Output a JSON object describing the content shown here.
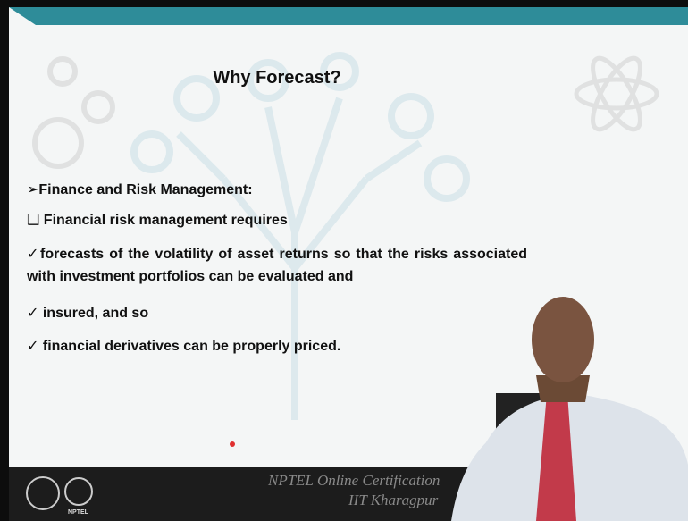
{
  "slide": {
    "title": "Why Forecast?",
    "heading": "➢Finance and Risk Management:",
    "subheading": "Financial risk management requires",
    "checks": [
      "forecasts of the volatility of asset returns so that the risks associated with investment portfolios can be evaluated and",
      "insured, and so",
      "financial derivatives can be properly priced."
    ]
  },
  "footer": {
    "line1": "NPTEL Online Certification",
    "line2": "IIT Kharagpur",
    "logo": "NPTEL"
  }
}
